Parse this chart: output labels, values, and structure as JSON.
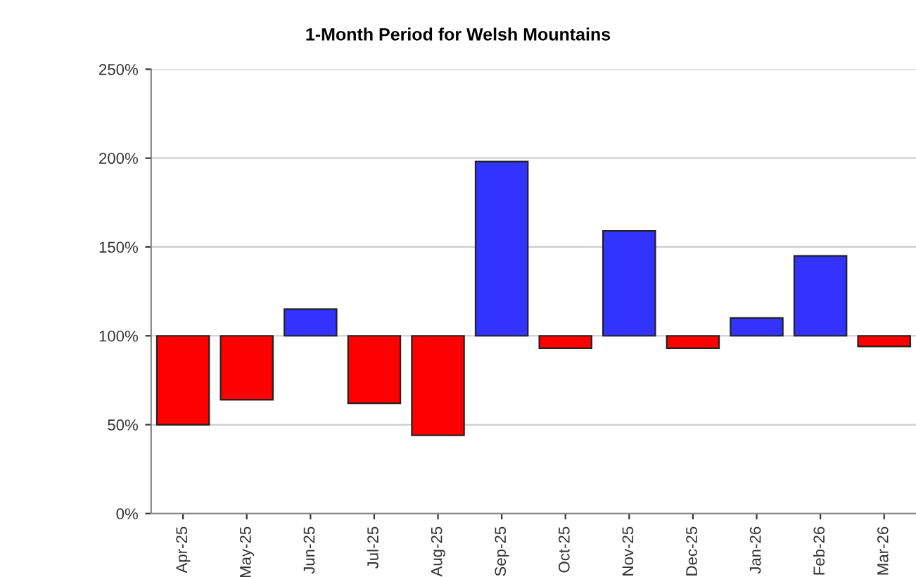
{
  "chart_data": {
    "type": "bar",
    "title": "1-Month Period for Welsh Mountains",
    "categories": [
      "Apr-25",
      "May-25",
      "Jun-25",
      "Jul-25",
      "Aug-25",
      "Sep-25",
      "Oct-25",
      "Nov-25",
      "Dec-25",
      "Jan-26",
      "Feb-26",
      "Mar-26"
    ],
    "base": [
      100,
      100,
      100,
      100,
      100,
      100,
      100,
      100,
      100,
      100,
      100,
      100
    ],
    "values": [
      -50,
      -36,
      15,
      -38,
      -56,
      98,
      -7,
      59,
      -7,
      10,
      45,
      -6
    ],
    "colors": [
      "#ff0000",
      "#ff0000",
      "#3333ff",
      "#ff0000",
      "#ff0000",
      "#3333ff",
      "#ff0000",
      "#3333ff",
      "#ff0000",
      "#3333ff",
      "#3333ff",
      "#ff0000"
    ],
    "ylim": [
      0,
      250
    ],
    "yticks": [
      {
        "value": 0,
        "label": "0%"
      },
      {
        "value": 50,
        "label": "50%"
      },
      {
        "value": 100,
        "label": "100%"
      },
      {
        "value": 150,
        "label": "150%"
      },
      {
        "value": 200,
        "label": "200%"
      },
      {
        "value": 250,
        "label": "250%"
      }
    ],
    "grid": "y"
  }
}
